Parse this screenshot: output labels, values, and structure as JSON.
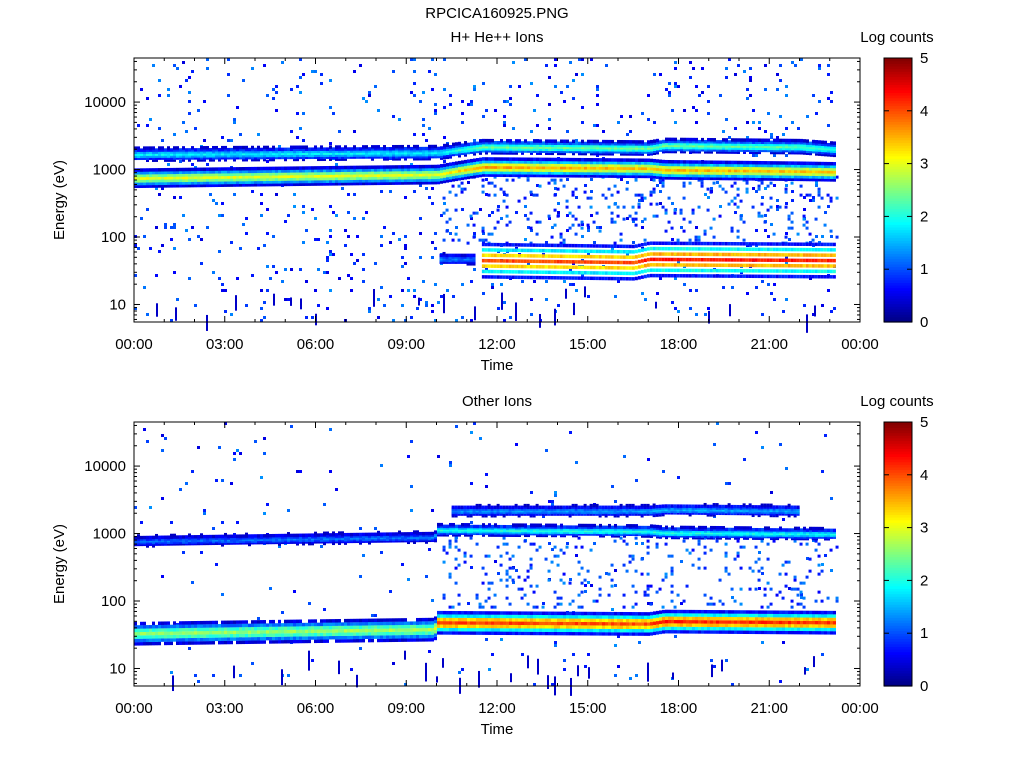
{
  "figure_title": "RPCICA160925.PNG",
  "chart_data": [
    {
      "type": "heatmap",
      "title": "H+ He++ Ions",
      "xlabel": "Time",
      "ylabel": "Energy (eV)",
      "x_tick_labels": [
        "00:00",
        "03:00",
        "06:00",
        "09:00",
        "12:00",
        "15:00",
        "18:00",
        "21:00",
        "00:00"
      ],
      "x_range_hours": [
        0,
        24
      ],
      "x_data_end_hours": 23.2,
      "y_scale": "log",
      "y_range": [
        5.5,
        45000
      ],
      "y_tick_values": [
        10,
        100,
        1000,
        10000
      ],
      "y_tick_labels": [
        "10",
        "100",
        "1000",
        "10000"
      ],
      "colorbar": {
        "label": "Log counts",
        "range": [
          0,
          5
        ],
        "tick_labels": [
          "0",
          "1",
          "2",
          "3",
          "4",
          "5"
        ],
        "colormap": "jet"
      },
      "bands": [
        {
          "t": [
            0,
            10,
            11.5,
            17,
            17.5,
            22,
            23.2
          ],
          "e": [
            750,
            850,
            1100,
            1050,
            1000,
            950,
            930
          ],
          "level": [
            3.0,
            3.0,
            3.6,
            3.4,
            3.5,
            3.4,
            3.4
          ],
          "width": 0.08
        },
        {
          "t": [
            0,
            10,
            11.5,
            17,
            17.5,
            22,
            23.2
          ],
          "e": [
            1700,
            1800,
            2200,
            2100,
            2300,
            2200,
            2000
          ],
          "level": [
            1.8,
            1.8,
            2.4,
            2.4,
            2.4,
            2.3,
            2.0
          ],
          "width": 0.06
        },
        {
          "t": [
            11.5,
            16.5,
            17.0,
            23.2
          ],
          "e": [
            45,
            42,
            47,
            45
          ],
          "level": [
            4.0,
            4.0,
            4.3,
            4.2
          ],
          "width": 0.16
        },
        {
          "t": [
            10.1,
            11.2
          ],
          "e": [
            48,
            48
          ],
          "level": [
            1.2,
            1.2
          ],
          "width": 0.05
        }
      ]
    },
    {
      "type": "heatmap",
      "title": "Other Ions",
      "xlabel": "Time",
      "ylabel": "Energy (eV)",
      "x_tick_labels": [
        "00:00",
        "03:00",
        "06:00",
        "09:00",
        "12:00",
        "15:00",
        "18:00",
        "21:00",
        "00:00"
      ],
      "x_range_hours": [
        0,
        24
      ],
      "x_data_end_hours": 23.2,
      "y_scale": "log",
      "y_range": [
        5.5,
        45000
      ],
      "y_tick_values": [
        10,
        100,
        1000,
        10000
      ],
      "y_tick_labels": [
        "10",
        "100",
        "1000",
        "10000"
      ],
      "colorbar": {
        "label": "Log counts",
        "range": [
          0,
          5
        ],
        "tick_labels": [
          "0",
          "1",
          "2",
          "3",
          "4",
          "5"
        ],
        "colormap": "jet"
      },
      "bands": [
        {
          "t": [
            0,
            9.9,
            10,
            17,
            17.5,
            23.2
          ],
          "e": [
            33,
            38,
            48,
            46,
            50,
            48
          ],
          "level": [
            2.6,
            2.7,
            4.1,
            4.0,
            4.2,
            4.1
          ],
          "width": 0.1
        },
        {
          "t": [
            0,
            9.9,
            10,
            17,
            17.5,
            23.2
          ],
          "e": [
            780,
            900,
            1150,
            1100,
            1050,
            1000
          ],
          "level": [
            1.1,
            1.2,
            2.0,
            2.0,
            2.0,
            1.9
          ],
          "width": 0.05
        },
        {
          "t": [
            10.5,
            17,
            17.5,
            22
          ],
          "e": [
            2200,
            2200,
            2300,
            2200
          ],
          "level": [
            1.3,
            1.4,
            1.5,
            1.4
          ],
          "width": 0.05
        }
      ]
    }
  ]
}
